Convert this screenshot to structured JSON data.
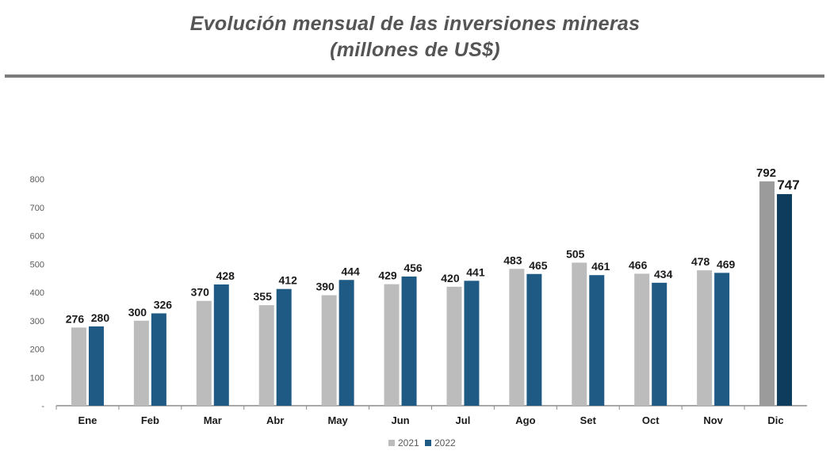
{
  "chart_data": {
    "type": "bar",
    "title": "Evolución mensual de las inversiones mineras",
    "subtitle": "(millones de US$)",
    "categories": [
      "Ene",
      "Feb",
      "Mar",
      "Abr",
      "May",
      "Jun",
      "Jul",
      "Ago",
      "Set",
      "Oct",
      "Nov",
      "Dic"
    ],
    "series": [
      {
        "name": "2021",
        "values": [
          276,
          300,
          370,
          355,
          390,
          429,
          420,
          483,
          505,
          466,
          478,
          792
        ]
      },
      {
        "name": "2022",
        "values": [
          280,
          326,
          428,
          412,
          444,
          456,
          441,
          465,
          461,
          434,
          469,
          747
        ]
      }
    ],
    "y_ticks": [
      "-",
      "100",
      "200",
      "300",
      "400",
      "500",
      "600",
      "700",
      "800"
    ],
    "ylim": [
      0,
      800
    ],
    "grid": false,
    "legend_position": "bottom-center",
    "colors": {
      "2021": "#bcbcbc",
      "2022": "#1f5a85",
      "2021_highlight": "#9b9b9b",
      "2022_highlight": "#0d3c5c"
    }
  }
}
